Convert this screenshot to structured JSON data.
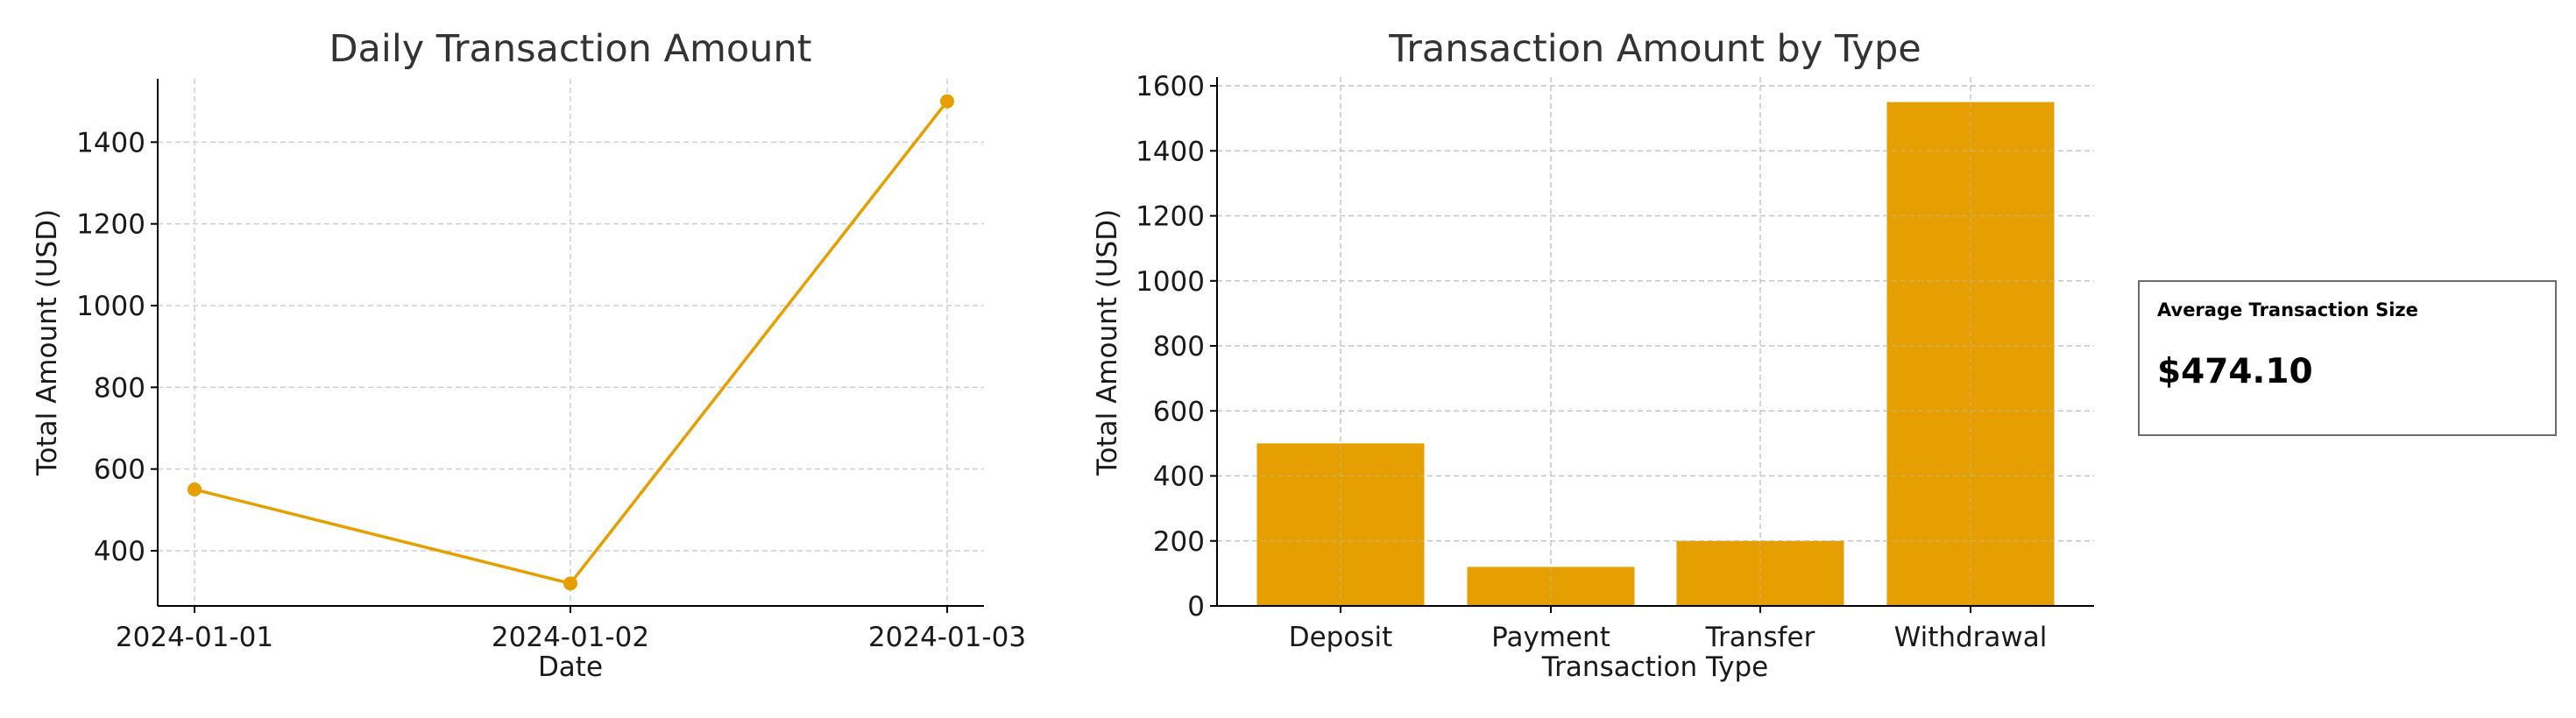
{
  "accent_color": "#E69F00",
  "chart_data": [
    {
      "type": "line",
      "title": "Daily Transaction Amount",
      "xlabel": "Date",
      "ylabel": "Total Amount (USD)",
      "x": [
        "2024-01-01",
        "2024-01-02",
        "2024-01-03"
      ],
      "values": [
        550,
        320,
        1500
      ],
      "yticks": [
        400,
        600,
        800,
        1000,
        1200,
        1400
      ],
      "ylim": [
        265,
        1555
      ],
      "grid": true,
      "marker": "circle"
    },
    {
      "type": "bar",
      "title": "Transaction Amount by Type",
      "xlabel": "Transaction Type",
      "ylabel": "Total Amount (USD)",
      "categories": [
        "Deposit",
        "Payment",
        "Transfer",
        "Withdrawal"
      ],
      "values": [
        500,
        120,
        200,
        1550
      ],
      "yticks": [
        0,
        200,
        400,
        600,
        800,
        1000,
        1200,
        1400,
        1600
      ],
      "ylim": [
        0,
        1627
      ],
      "grid": true
    }
  ],
  "kpi": {
    "label": "Average Transaction Size",
    "value": "$474.10"
  }
}
